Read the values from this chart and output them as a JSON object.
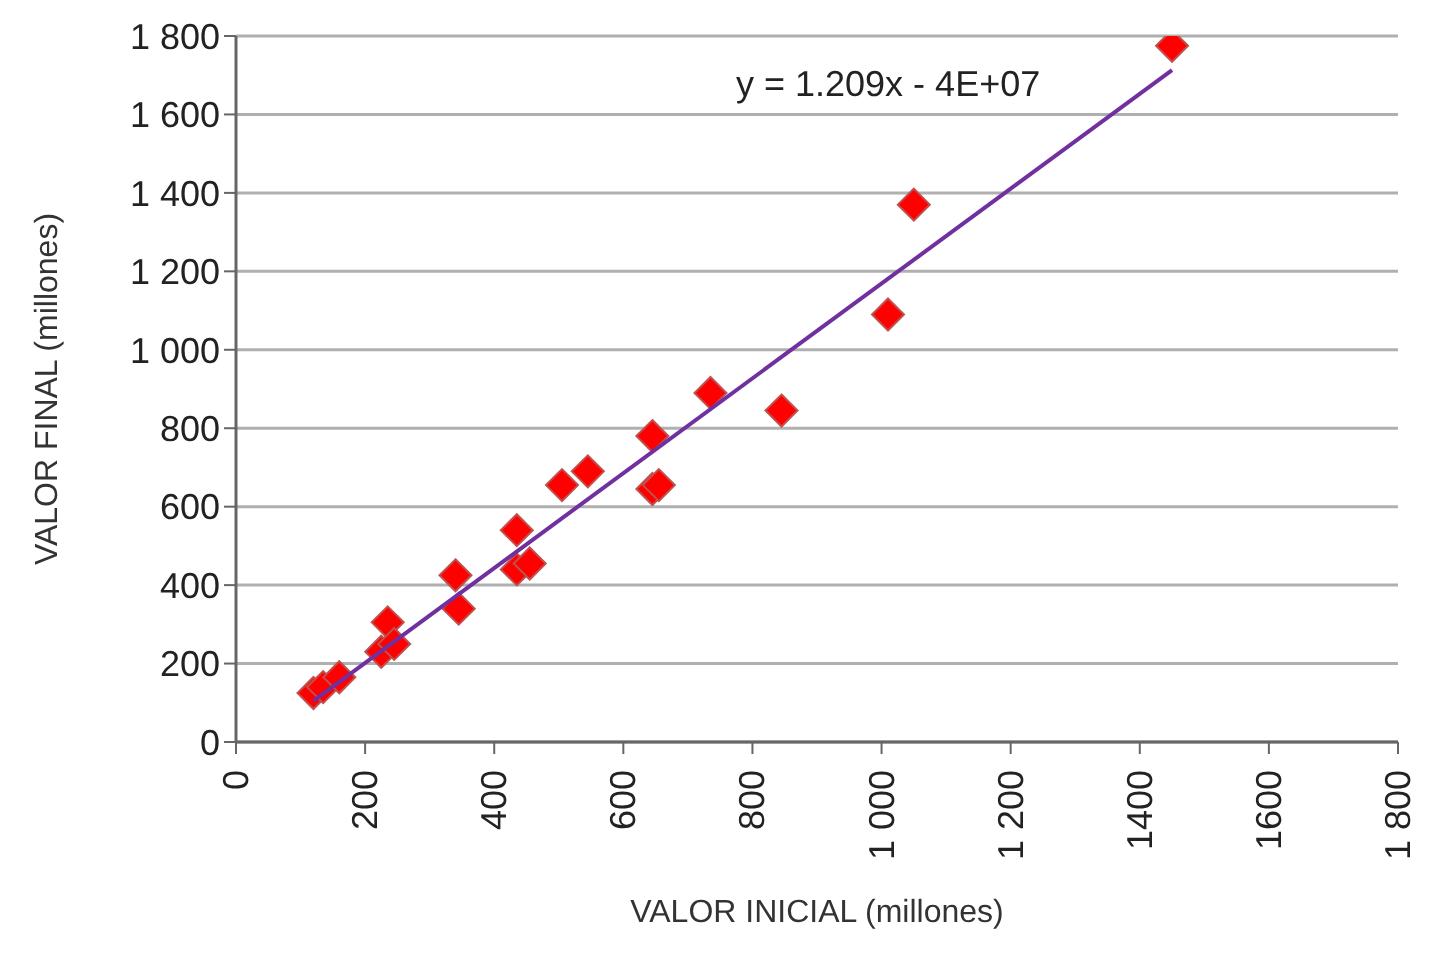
{
  "chart_data": {
    "type": "scatter",
    "xlabel": "VALOR INICIAL (millones)",
    "ylabel": "VALOR FINAL (millones)",
    "annotations": [
      "y = 1.209x - 4E+07"
    ],
    "xlim": [
      0,
      1800
    ],
    "xticks": [
      0,
      200,
      400,
      600,
      800,
      {
        "value": 1000,
        "label": "1 000"
      },
      {
        "value": 1200,
        "label": "1 200"
      },
      1400,
      1600,
      {
        "value": 1800,
        "label": "1 800"
      }
    ],
    "ylim": [
      0,
      1800
    ],
    "yticks": [
      0,
      200,
      400,
      600,
      800,
      {
        "value": 1000,
        "label": "1 000"
      },
      {
        "value": 1200,
        "label": "1 200"
      },
      {
        "value": 1400,
        "label": "1 400"
      },
      {
        "value": 1600,
        "label": "1 600"
      },
      {
        "value": 1800,
        "label": "1 800"
      }
    ],
    "grid": "y",
    "series": [
      {
        "marker": "diamond",
        "color": "#ff0000",
        "x": [
          120,
          135,
          160,
          225,
          235,
          245,
          340,
          345,
          435,
          435,
          455,
          505,
          545,
          645,
          645,
          655,
          735,
          845,
          1010,
          1050,
          1450
        ],
        "values": [
          125,
          140,
          165,
          230,
          305,
          250,
          425,
          340,
          540,
          440,
          455,
          655,
          690,
          780,
          645,
          655,
          890,
          845,
          1090,
          1370,
          1775
        ]
      },
      {
        "type": "line",
        "color": "#7030a0",
        "x": [
          120,
          1450
        ],
        "values": [
          105,
          1713
        ]
      }
    ]
  }
}
